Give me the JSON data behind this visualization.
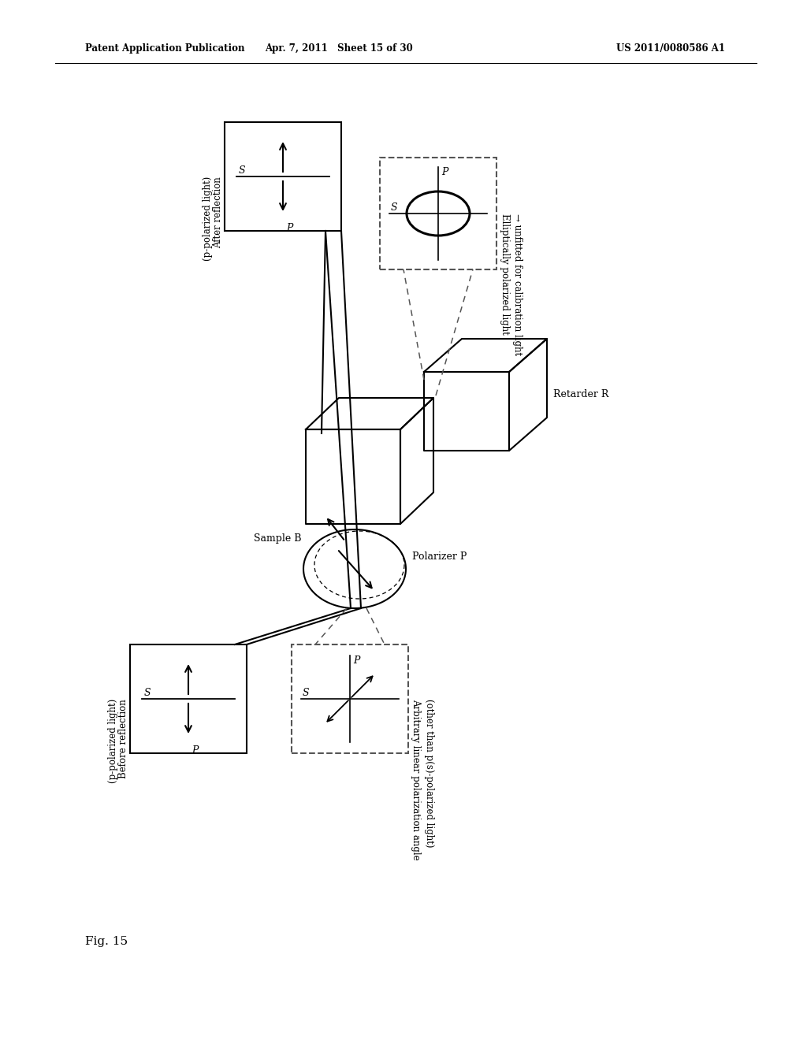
{
  "bg": "#ffffff",
  "lc": "#000000",
  "dc": "#555555",
  "header_left": "Patent Application Publication",
  "header_center": "Apr. 7, 2011   Sheet 15 of 30",
  "header_right": "US 2011/0080586 A1",
  "fig_label": "Fig. 15",
  "label_after_solid_1": "After reflection",
  "label_after_solid_2": "(p-polarized light)",
  "label_after_dashed_1": "Elliptically polarized light",
  "label_after_dashed_2": "→ unfitted for calibration light",
  "label_before_solid_1": "Before reflection",
  "label_before_solid_2": "(p-polarized light)",
  "label_before_dashed_1": "Arbitrary linear polarization angle",
  "label_before_dashed_2": "(other than p(s)-polarized light)",
  "label_sample": "Sample B",
  "label_retarder": "Retarder R",
  "label_polarizer": "Polarizer P"
}
